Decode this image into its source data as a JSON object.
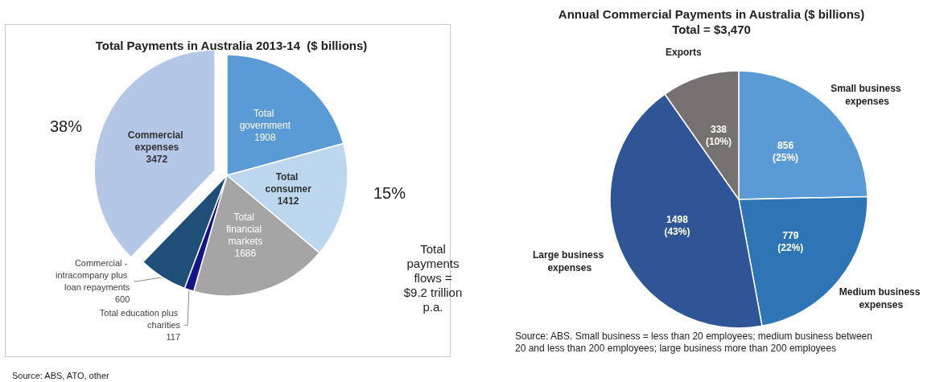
{
  "chart_data": [
    {
      "type": "pie",
      "title": "Total Payments in Australia 2013-14  ($ billions)",
      "categories": [
        "Total government",
        "Total consumer",
        "Total financial markets",
        "Total education plus charities",
        "Commercial - intracompany plus loan repayments",
        "Commercial expenses"
      ],
      "values": [
        1908,
        1412,
        1686,
        117,
        600,
        3472
      ],
      "colors": [
        "#5b9bd5",
        "#bdd7ee",
        "#a5a5a5",
        "#14148c",
        "#1f4e79",
        "#b4c7e7"
      ],
      "data_labels": true,
      "annotations": [
        "38%",
        "15%",
        "Total\npayments\nflows =\n$9.2 trillion\np.a.",
        "Source: ABS, ATO, other"
      ]
    },
    {
      "type": "pie",
      "title": "Annual Commercial Payments in Australia ($ billions)",
      "subtitle": "Total = $3,470",
      "categories": [
        "Small business expenses",
        "Medium business expenses",
        "Large business expenses",
        "Exports"
      ],
      "values": [
        856,
        779,
        1498,
        338
      ],
      "colors": [
        "#5b9bd5",
        "#2e75b6",
        "#2f5597",
        "#767171"
      ],
      "value_labels": [
        "856\n(25%)",
        "779\n(22%)",
        "1498\n(43%)",
        "338\n(10%)"
      ],
      "annotations": [
        "Source: ABS. Small business = less than 20 employees; medium business between 20 and less than 200 employees; large business more than 200 employees"
      ]
    }
  ]
}
